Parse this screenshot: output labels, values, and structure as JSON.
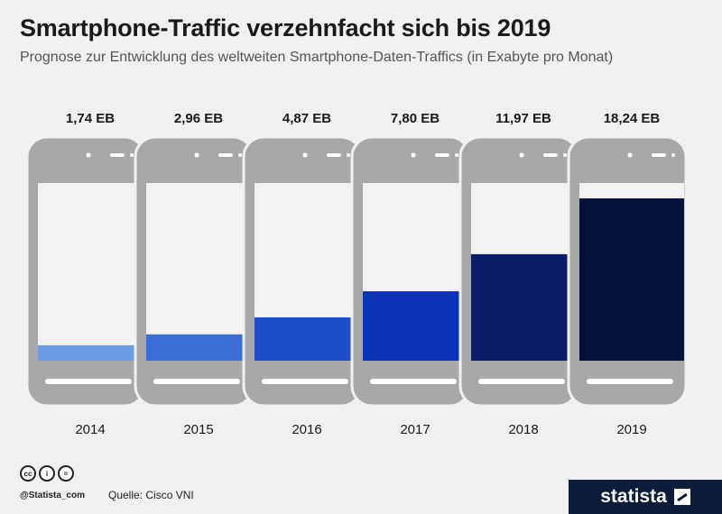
{
  "header": {
    "title": "Smartphone-Traffic verzehnfacht sich bis 2019",
    "subtitle": "Prognose zur Entwicklung des weltweiten Smartphone-Daten-Traffics (in Exabyte pro Monat)"
  },
  "chart_data": {
    "type": "bar",
    "categories": [
      "2014",
      "2015",
      "2016",
      "2017",
      "2018",
      "2019"
    ],
    "values": [
      1.74,
      2.96,
      4.87,
      7.8,
      11.97,
      18.24
    ],
    "value_labels": [
      "1,74 EB",
      "2,96 EB",
      "4,87 EB",
      "7,80 EB",
      "11,97 EB",
      "18,24 EB"
    ],
    "bar_colors": [
      "#6a9de6",
      "#3d6ed8",
      "#1e4fc8",
      "#0c32b5",
      "#0a1e6a",
      "#061239"
    ],
    "unit": "EB",
    "ylim": [
      0,
      18.24
    ],
    "grid": false
  },
  "footer": {
    "handle": "@Statista_com",
    "source": "Quelle: Cisco VNI",
    "brand": "statista",
    "license_icons": [
      "cc-icon",
      "by-icon",
      "nd-icon"
    ]
  }
}
